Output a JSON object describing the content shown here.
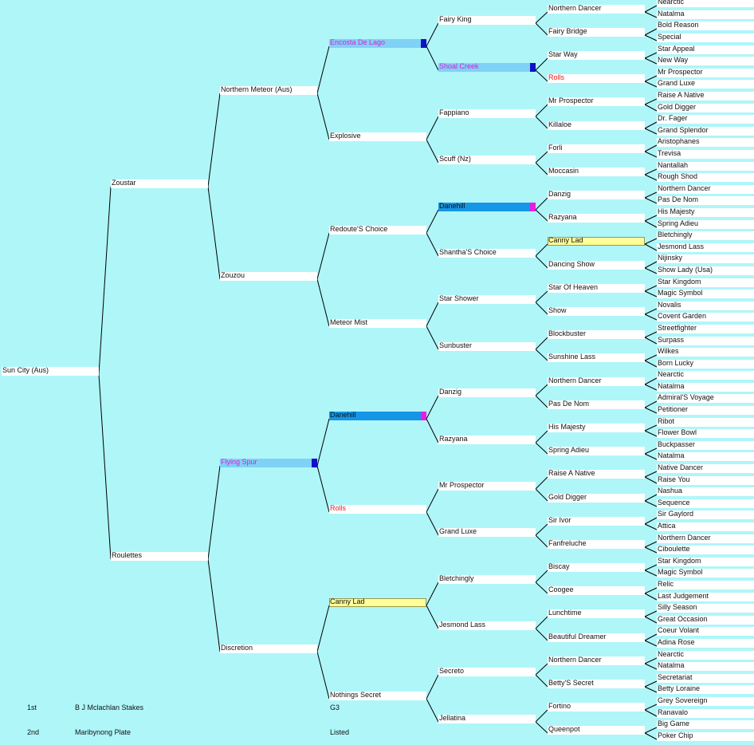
{
  "horse": "Sun City (Aus)",
  "pedigree": {
    "g1": [
      "Zoustar",
      "Roulettes"
    ],
    "g2": [
      "Northern Meteor (Aus)",
      "Zouzou",
      "Flying Spur",
      "Discretion"
    ],
    "g3": [
      "Encosta De Lago",
      "Explosive",
      "Redoute'S Choice",
      "Meteor Mist",
      "Danehill",
      "Rolls",
      "Canny Lad",
      "Nothings Secret"
    ],
    "g4": [
      "Fairy King",
      "Shoal Creek",
      "Fappiano",
      "Scuff (Nz)",
      "Danehill",
      "Shantha'S Choice",
      "Star Shower",
      "Sunbuster",
      "Danzig",
      "Razyana",
      "Mr Prospector",
      "Grand Luxe",
      "Bletchingly",
      "Jesmond Lass",
      "Secreto",
      "Jellatina"
    ],
    "g5": [
      "Northern Dancer",
      "Fairy Bridge",
      "Star Way",
      "Rolls",
      "Mr Prospector",
      "Killaloe",
      "Forli",
      "Moccasin",
      "Danzig",
      "Razyana",
      "Canny Lad",
      "Dancing Show",
      "Star Of Heaven",
      "Show",
      "Blockbuster",
      "Sunshine Lass",
      "Northern Dancer",
      "Pas De Nom",
      "His Majesty",
      "Spring Adieu",
      "Raise A Native",
      "Gold Digger",
      "Sir Ivor",
      "Fanfreluche",
      "Biscay",
      "Coogee",
      "Lunchtime",
      "Beautiful Dreamer",
      "Northern Dancer",
      "Betty'S Secret",
      "Fortino",
      "Queenpot"
    ],
    "g6": [
      "Nearctic",
      "Natalma",
      "Bold Reason",
      "Special",
      "Star Appeal",
      "New Way",
      "Mr Prospector",
      "Grand Luxe",
      "Raise A Native",
      "Gold Digger",
      "Dr. Fager",
      "Grand Splendor",
      "Aristophanes",
      "Trevisa",
      "Nantallah",
      "Rough Shod",
      "Northern Dancer",
      "Pas De Nom",
      "His Majesty",
      "Spring Adieu",
      "Bletchingly",
      "Jesmond Lass",
      "Nijinsky",
      "Show Lady (Usa)",
      "Star Kingdom",
      "Magic Symbol",
      "Novalis",
      "Covent Garden",
      "Streetfighter",
      "Surpass",
      "Wilkes",
      "Born Lucky",
      "Nearctic",
      "Natalma",
      "Admiral'S Voyage",
      "Petitioner",
      "Ribot",
      "Flower Bowl",
      "Buckpasser",
      "Natalma",
      "Native Dancer",
      "Raise You",
      "Nashua",
      "Sequence",
      "Sir Gaylord",
      "Attica",
      "Northern Dancer",
      "Ciboulette",
      "Star Kingdom",
      "Magic Symbol",
      "Relic",
      "Last Judgement",
      "Silly Season",
      "Great Occasion",
      "Coeur Volant",
      "Adina Rose",
      "Nearctic",
      "Natalma",
      "Secretariat",
      "Betty Loraine",
      "Grey Sovereign",
      "Ranavalo",
      "Big Game",
      "Poker Chip"
    ]
  },
  "highlights": {
    "g2_2": {
      "style": "hl-blue",
      "text": "magenta",
      "marker": "blue"
    },
    "g3_0": {
      "style": "hl-blue",
      "text": "magenta",
      "marker": "blue"
    },
    "g3_4": {
      "style": "hl-dblue",
      "text": "",
      "marker": "pink"
    },
    "g3_5": {
      "style": "",
      "text": "red",
      "marker": ""
    },
    "g3_6": {
      "style": "hl-yellow",
      "text": "",
      "marker": ""
    },
    "g4_1": {
      "style": "hl-blue",
      "text": "magenta",
      "marker": "blue"
    },
    "g4_4": {
      "style": "hl-dblue",
      "text": "",
      "marker": "pink"
    },
    "g5_3": {
      "style": "",
      "text": "red",
      "marker": ""
    },
    "g5_10": {
      "style": "hl-yellow",
      "text": "",
      "marker": ""
    }
  },
  "colors": {
    "background": "#aff6f9",
    "highlight_blue": "#7fd2f6",
    "highlight_dark_blue": "#1696e7",
    "highlight_yellow": "#ffff99",
    "marker_blue": "#1010c8",
    "marker_pink": "#e91de3",
    "text_magenta": "#e01cd6",
    "text_red": "#e61a1a"
  },
  "results": [
    {
      "place": "1st",
      "race": "B J Mclachlan Stakes",
      "grade": "G3"
    },
    {
      "place": "2nd",
      "race": "Maribynong Plate",
      "grade": "Listed"
    }
  ]
}
